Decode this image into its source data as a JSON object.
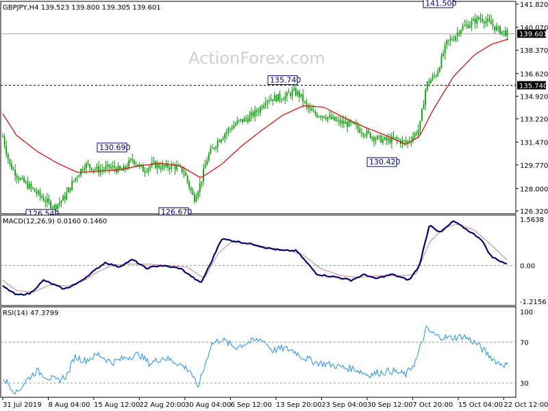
{
  "header": {
    "symbol_line": "GBPJPY,H4  139.523 139.800 139.305 139.601"
  },
  "watermark": "ActionForex.com",
  "chart_data": [
    {
      "type": "candlestick",
      "name": "price",
      "ylim": [
        126.32,
        141.82
      ],
      "yticks": [
        "141.820",
        "140.070",
        "138.370",
        "136.620",
        "134.920",
        "133.220",
        "131.470",
        "129.770",
        "128.000",
        "126.320"
      ],
      "moving_average_color": "#e00000",
      "bar_color": "#00a000",
      "levels": [
        {
          "value": 139.601,
          "label": "139.601",
          "style": "solid",
          "color": "#a0a0a0"
        },
        {
          "value": 135.74,
          "label": "135.740",
          "style": "dashed",
          "color": "#000000"
        }
      ],
      "annotations": [
        {
          "label": "126.540",
          "value": 126.54
        },
        {
          "label": "130.690",
          "value": 130.69
        },
        {
          "label": "126.670",
          "value": 126.67
        },
        {
          "label": "135.740",
          "value": 135.74
        },
        {
          "label": "130.420",
          "value": 130.42
        },
        {
          "label": "141.500",
          "value": 141.5
        }
      ],
      "waypoints_close": [
        [
          0,
          131.9
        ],
        [
          10,
          129.8
        ],
        [
          25,
          128.7
        ],
        [
          40,
          128.1
        ],
        [
          60,
          127.2
        ],
        [
          75,
          126.6
        ],
        [
          90,
          127.3
        ],
        [
          105,
          128.7
        ],
        [
          120,
          129.8
        ],
        [
          140,
          129.4
        ],
        [
          160,
          129.6
        ],
        [
          175,
          129.3
        ],
        [
          190,
          130.2
        ],
        [
          205,
          129.4
        ],
        [
          220,
          129.8
        ],
        [
          235,
          129.6
        ],
        [
          250,
          129.7
        ],
        [
          265,
          129.3
        ],
        [
          280,
          127.2
        ],
        [
          290,
          128.5
        ],
        [
          300,
          130.4
        ],
        [
          315,
          131.6
        ],
        [
          330,
          132.4
        ],
        [
          345,
          133.0
        ],
        [
          360,
          133.3
        ],
        [
          375,
          133.9
        ],
        [
          385,
          134.7
        ],
        [
          400,
          134.8
        ],
        [
          415,
          134.9
        ],
        [
          425,
          135.3
        ],
        [
          435,
          135.0
        ],
        [
          445,
          134.1
        ],
        [
          455,
          133.6
        ],
        [
          470,
          133.5
        ],
        [
          490,
          133.0
        ],
        [
          510,
          132.8
        ],
        [
          530,
          132.2
        ],
        [
          545,
          131.8
        ],
        [
          560,
          131.6
        ],
        [
          575,
          131.7
        ],
        [
          590,
          131.4
        ],
        [
          600,
          131.9
        ],
        [
          610,
          132.5
        ],
        [
          620,
          135.8
        ],
        [
          635,
          136.6
        ],
        [
          650,
          138.9
        ],
        [
          660,
          139.3
        ],
        [
          670,
          140.0
        ],
        [
          685,
          140.4
        ],
        [
          700,
          140.8
        ],
        [
          715,
          140.3
        ],
        [
          725,
          139.9
        ],
        [
          740,
          139.6
        ]
      ],
      "waypoints_ma": [
        [
          0,
          133.6
        ],
        [
          20,
          132.0
        ],
        [
          50,
          130.8
        ],
        [
          80,
          129.9
        ],
        [
          110,
          129.2
        ],
        [
          140,
          129.3
        ],
        [
          170,
          129.4
        ],
        [
          200,
          129.7
        ],
        [
          230,
          129.9
        ],
        [
          260,
          129.7
        ],
        [
          290,
          128.8
        ],
        [
          320,
          129.8
        ],
        [
          350,
          131.2
        ],
        [
          380,
          132.4
        ],
        [
          410,
          133.5
        ],
        [
          440,
          134.2
        ],
        [
          470,
          134.1
        ],
        [
          500,
          133.3
        ],
        [
          530,
          132.6
        ],
        [
          560,
          132.0
        ],
        [
          590,
          131.3
        ],
        [
          610,
          131.9
        ],
        [
          630,
          133.9
        ],
        [
          660,
          136.4
        ],
        [
          690,
          138.0
        ],
        [
          715,
          138.8
        ],
        [
          740,
          139.2
        ]
      ]
    },
    {
      "type": "line",
      "name": "macd",
      "title": "MACD(12,26,9) 0.0160 0.1460",
      "ylim": [
        -1.2156,
        1.5638
      ],
      "yticks": [
        "1.5638",
        "0.00",
        "-1.2156"
      ],
      "zero_line": true,
      "series": [
        {
          "name": "main",
          "color": "#00006e",
          "waypoints": [
            [
              0,
              -0.7
            ],
            [
              20,
              -1.0
            ],
            [
              40,
              -0.95
            ],
            [
              60,
              -0.5
            ],
            [
              90,
              -0.8
            ],
            [
              110,
              -0.6
            ],
            [
              130,
              -0.25
            ],
            [
              150,
              0.1
            ],
            [
              170,
              -0.05
            ],
            [
              190,
              0.2
            ],
            [
              210,
              -0.1
            ],
            [
              230,
              0.0
            ],
            [
              260,
              -0.1
            ],
            [
              290,
              -0.6
            ],
            [
              305,
              0.1
            ],
            [
              320,
              0.9
            ],
            [
              345,
              0.8
            ],
            [
              370,
              0.7
            ],
            [
              385,
              0.6
            ],
            [
              410,
              0.5
            ],
            [
              430,
              0.5
            ],
            [
              445,
              0.1
            ],
            [
              460,
              -0.3
            ],
            [
              490,
              -0.4
            ],
            [
              510,
              -0.5
            ],
            [
              530,
              -0.3
            ],
            [
              545,
              -0.45
            ],
            [
              570,
              -0.3
            ],
            [
              595,
              -0.5
            ],
            [
              610,
              0.0
            ],
            [
              625,
              1.4
            ],
            [
              640,
              1.1
            ],
            [
              660,
              1.5
            ],
            [
              680,
              1.2
            ],
            [
              700,
              0.9
            ],
            [
              715,
              0.3
            ],
            [
              740,
              0.02
            ]
          ]
        },
        {
          "name": "signal",
          "color": "#d08080",
          "waypoints": [
            [
              0,
              -0.5
            ],
            [
              20,
              -0.85
            ],
            [
              45,
              -0.9
            ],
            [
              70,
              -0.65
            ],
            [
              95,
              -0.7
            ],
            [
              120,
              -0.5
            ],
            [
              140,
              -0.2
            ],
            [
              160,
              0.0
            ],
            [
              185,
              0.05
            ],
            [
              210,
              0.05
            ],
            [
              240,
              0.0
            ],
            [
              270,
              -0.05
            ],
            [
              295,
              -0.45
            ],
            [
              315,
              0.4
            ],
            [
              335,
              0.8
            ],
            [
              360,
              0.75
            ],
            [
              390,
              0.6
            ],
            [
              420,
              0.5
            ],
            [
              440,
              0.35
            ],
            [
              465,
              -0.1
            ],
            [
              495,
              -0.35
            ],
            [
              520,
              -0.4
            ],
            [
              550,
              -0.35
            ],
            [
              580,
              -0.35
            ],
            [
              605,
              -0.3
            ],
            [
              625,
              0.8
            ],
            [
              645,
              1.25
            ],
            [
              665,
              1.4
            ],
            [
              690,
              1.2
            ],
            [
              710,
              0.8
            ],
            [
              740,
              0.15
            ]
          ]
        }
      ]
    },
    {
      "type": "line",
      "name": "rsi",
      "title": "RSI(14) 47.3799",
      "ylim": [
        18,
        100
      ],
      "yticks": [
        "100",
        "70",
        "30"
      ],
      "guide_lines": [
        70,
        30
      ],
      "series": [
        {
          "name": "rsi",
          "color": "#1e90ff",
          "waypoints": [
            [
              0,
              35
            ],
            [
              10,
              28
            ],
            [
              20,
              20
            ],
            [
              35,
              33
            ],
            [
              50,
              42
            ],
            [
              65,
              36
            ],
            [
              80,
              32
            ],
            [
              95,
              38
            ],
            [
              105,
              56
            ],
            [
              120,
              52
            ],
            [
              140,
              58
            ],
            [
              160,
              50
            ],
            [
              180,
              55
            ],
            [
              200,
              58
            ],
            [
              215,
              49
            ],
            [
              235,
              55
            ],
            [
              255,
              50
            ],
            [
              275,
              42
            ],
            [
              285,
              25
            ],
            [
              295,
              45
            ],
            [
              305,
              68
            ],
            [
              320,
              73
            ],
            [
              340,
              65
            ],
            [
              360,
              70
            ],
            [
              380,
              73
            ],
            [
              395,
              62
            ],
            [
              410,
              64
            ],
            [
              425,
              62
            ],
            [
              440,
              55
            ],
            [
              460,
              50
            ],
            [
              480,
              48
            ],
            [
              500,
              45
            ],
            [
              515,
              44
            ],
            [
              535,
              38
            ],
            [
              550,
              40
            ],
            [
              570,
              42
            ],
            [
              590,
              38
            ],
            [
              605,
              52
            ],
            [
              620,
              83
            ],
            [
              635,
              76
            ],
            [
              655,
              74
            ],
            [
              675,
              76
            ],
            [
              695,
              68
            ],
            [
              710,
              58
            ],
            [
              725,
              50
            ],
            [
              740,
              47
            ]
          ]
        }
      ]
    }
  ],
  "x_axis": {
    "labels": [
      "31 Jul 2019",
      "8 Aug 04:00",
      "15 Aug 12:00",
      "22 Aug 20:00",
      "30 Aug 04:00",
      "6 Sep 12:00",
      "13 Sep 20:00",
      "23 Sep 04:00",
      "30 Sep 12:00",
      "7 Oct 20:00",
      "15 Oct 04:00",
      "22 Oct 12:00"
    ]
  }
}
